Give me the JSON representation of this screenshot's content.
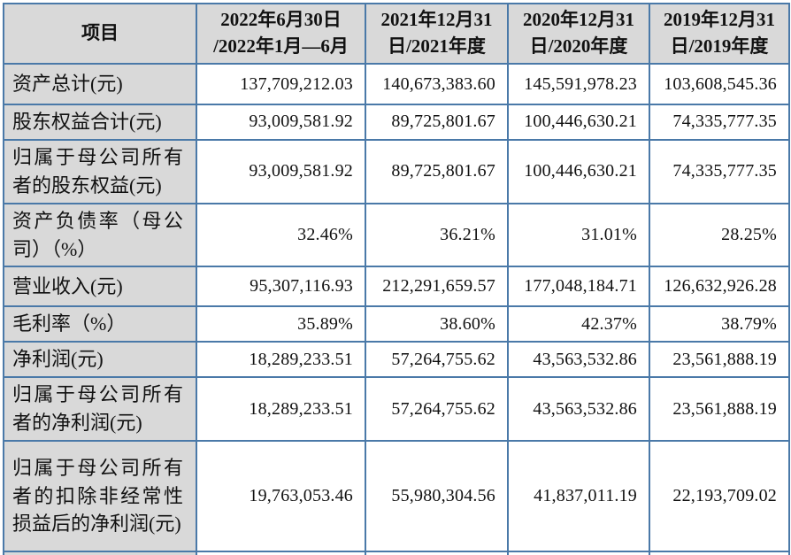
{
  "colors": {
    "border": "#4a79a8",
    "header_shading": "#d9d9d9",
    "label_shading": "#d9d9d9"
  },
  "table": {
    "header": {
      "item_col": "项目",
      "periods": [
        "2022年6月30日\n/2022年1月—6月",
        "2021年12月31\n日/2021年度",
        "2020年12月31\n日/2020年度",
        "2019年12月31\n日/2019年度"
      ]
    },
    "rows": [
      {
        "label": "资产总计(元)",
        "values": [
          "137,709,212.03",
          "140,673,383.60",
          "145,591,978.23",
          "103,608,545.36"
        ]
      },
      {
        "label": "股东权益合计(元)",
        "values": [
          "93,009,581.92",
          "89,725,801.67",
          "100,446,630.21",
          "74,335,777.35"
        ]
      },
      {
        "label": "归属于母公司所有者的股东权益(元)",
        "values": [
          "93,009,581.92",
          "89,725,801.67",
          "100,446,630.21",
          "74,335,777.35"
        ]
      },
      {
        "label": "资产负债率（母公司）（%）",
        "values": [
          "32.46%",
          "36.21%",
          "31.01%",
          "28.25%"
        ]
      },
      {
        "label": "营业收入(元)",
        "values": [
          "95,307,116.93",
          "212,291,659.57",
          "177,048,184.71",
          "126,632,926.28"
        ]
      },
      {
        "label": "毛利率（%）",
        "values": [
          "35.89%",
          "38.60%",
          "42.37%",
          "38.79%"
        ]
      },
      {
        "label": "净利润(元)",
        "values": [
          "18,289,233.51",
          "57,264,755.62",
          "43,563,532.86",
          "23,561,888.19"
        ]
      },
      {
        "label": "归属于母公司所有者的净利润(元)",
        "values": [
          "18,289,233.51",
          "57,264,755.62",
          "43,563,532.86",
          "23,561,888.19"
        ]
      },
      {
        "label": "归属于母公司所有者的扣除非经常性损益后的净利润(元)",
        "values": [
          "19,763,053.46",
          "55,980,304.56",
          "41,837,011.19",
          "22,193,709.02"
        ]
      }
    ]
  }
}
